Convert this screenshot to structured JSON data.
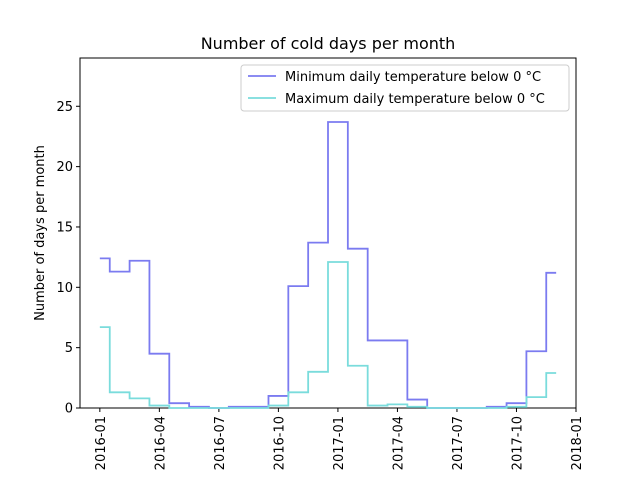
{
  "chart_data": {
    "type": "line",
    "title": "Number of cold days per month",
    "xlabel": "",
    "ylabel": "Number of days per month",
    "ylim": [
      0,
      29
    ],
    "yticks": [
      0,
      5,
      10,
      15,
      20,
      25
    ],
    "xticks": [
      "2016-01",
      "2016-04",
      "2016-07",
      "2016-10",
      "2017-01",
      "2017-04",
      "2017-07",
      "2017-10",
      "2018-01"
    ],
    "legend_position": "top-right",
    "grid": false,
    "x": [
      "2016-01",
      "2016-02",
      "2016-03",
      "2016-04",
      "2016-05",
      "2016-06",
      "2016-07",
      "2016-08",
      "2016-09",
      "2016-10",
      "2016-11",
      "2016-12",
      "2017-01",
      "2017-02",
      "2017-03",
      "2017-04",
      "2017-05",
      "2017-06",
      "2017-07",
      "2017-08",
      "2017-09",
      "2017-10",
      "2017-11",
      "2017-12"
    ],
    "series": [
      {
        "name": "Minimum daily temperature below 0 °C",
        "color": "#7b7bf0",
        "values": [
          12.4,
          11.3,
          12.2,
          4.5,
          0.4,
          0.1,
          0.0,
          0.1,
          0.1,
          1.0,
          10.1,
          13.7,
          23.7,
          13.2,
          5.6,
          5.6,
          0.7,
          0.0,
          0.0,
          0.0,
          0.1,
          0.4,
          4.7,
          11.2
        ]
      },
      {
        "name": "Maximum daily temperature below 0 °C",
        "color": "#7adcdc",
        "values": [
          6.7,
          1.3,
          0.8,
          0.2,
          0.0,
          0.0,
          0.0,
          0.0,
          0.0,
          0.2,
          1.3,
          3.0,
          12.1,
          3.5,
          0.2,
          0.3,
          0.1,
          0.0,
          0.0,
          0.0,
          0.0,
          0.1,
          0.9,
          2.9
        ]
      }
    ]
  }
}
